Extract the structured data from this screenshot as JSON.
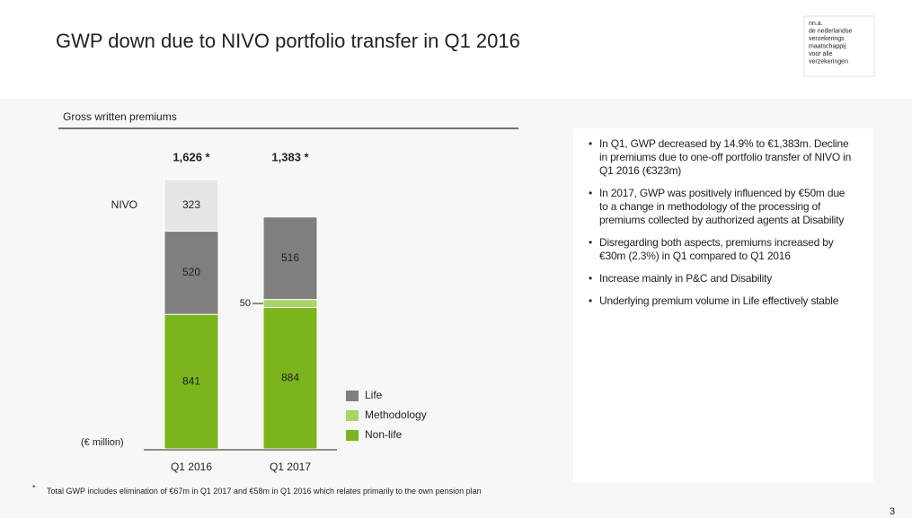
{
  "slide": {
    "title": "GWP down due to NIVO portfolio transfer in Q1 2016",
    "logo_lines": [
      "nn.a.",
      "de nederlandse",
      "verzekerings",
      "maatschappij",
      "voor alle",
      "verzekeringen"
    ],
    "bullets": [
      "In Q1, GWP decreased by 14.9% to €1,383m. Decline in premiums due to one-off portfolio transfer of NIVO in Q1 2016 (€323m)",
      "In 2017, GWP was positively influenced by €50m due to a change in methodology of the processing of premiums collected by authorized agents at Disability",
      "Disregarding both aspects, premiums increased by €30m (2.3%) in Q1 compared to Q1 2016",
      "Increase mainly in P&C and Disability",
      "Underlying premium volume in Life effectively stable"
    ],
    "footnote_marker": "*",
    "footnote": "Total GWP includes elimination of €67m in Q1 2017 and €58m in Q1 2016 which relates primarily to the own pension plan",
    "page_number": "3"
  },
  "chart_data": {
    "type": "stacked_bar",
    "title": "Gross written premiums",
    "unit_label": "(€ million)",
    "categories": [
      "Q1 2016",
      "Q1 2017"
    ],
    "series": [
      {
        "name": "Non-life",
        "color": "#7ab51d",
        "label_color": "#222222",
        "values": [
          841,
          884
        ]
      },
      {
        "name": "Methodology",
        "color": "#a9d465",
        "label_color": "#222222",
        "values": [
          null,
          50
        ]
      },
      {
        "name": "Life",
        "color": "#7f7f7f",
        "label_color": "#f0f0f0",
        "values": [
          520,
          516
        ]
      },
      {
        "name": "NIVO",
        "color": "#e6e6e6",
        "label_color": "#444444",
        "label_position": "left",
        "values": [
          323,
          null
        ]
      }
    ],
    "totals": {
      "values": [
        1626,
        1383
      ],
      "value_labels": [
        "1,626 *",
        "1,383 *"
      ]
    },
    "legend": "right-bottom"
  }
}
